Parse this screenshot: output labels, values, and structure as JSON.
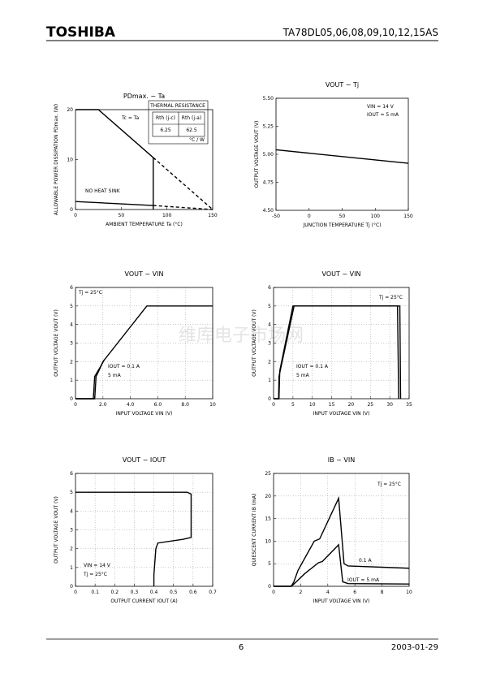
{
  "header": {
    "brand": "TOSHIBA",
    "part": "TA78DL05,06,08,09,10,12,15AS"
  },
  "footer": {
    "page": "6",
    "date": "2003-01-29"
  },
  "watermark": "维库电子市场网",
  "chart_data": [
    {
      "type": "line",
      "title": "PDmax. − Ta",
      "xlabel": "AMBIENT TEMPERATURE Ta (°C)",
      "ylabel": "ALLOWABLE POWER DISSIPATION PDmax. (W)",
      "xlim": [
        0,
        150
      ],
      "xticks": [
        0,
        50,
        100,
        150
      ],
      "ylim": [
        0,
        20
      ],
      "yticks": [
        0,
        10,
        20
      ],
      "grid": false,
      "series": [
        {
          "color": "#000",
          "x": [
            0,
            25,
            85
          ],
          "values": [
            20,
            20,
            10.4
          ]
        },
        {
          "color": "#000",
          "dashed": true,
          "x": [
            85,
            150
          ],
          "values": [
            10.4,
            0
          ]
        },
        {
          "color": "#000",
          "x": [
            85,
            85
          ],
          "values": [
            0,
            10.4
          ]
        },
        {
          "color": "#000",
          "x": [
            0,
            85
          ],
          "values": [
            1.6,
            0.8
          ]
        },
        {
          "color": "#000",
          "dashed": true,
          "x": [
            85,
            150
          ],
          "values": [
            0.8,
            0
          ]
        }
      ],
      "annotations": [
        "Tc = Ta",
        "NO HEAT SINK"
      ],
      "table": {
        "title": "THERMAL RESISTANCE",
        "header": [
          "Rth (j-c)",
          "Rth (j-a)"
        ],
        "row": [
          "6.25",
          "62.5"
        ],
        "unit": "°C / W"
      }
    },
    {
      "type": "line",
      "title": "VOUT − Tj",
      "xlabel": "JUNCTION TEMPERATURE Tj (°C)",
      "ylabel": "OUTPUT VOLTAGE VOUT (V)",
      "xlim": [
        -50,
        150
      ],
      "xticks": [
        -50,
        0,
        50,
        100,
        150
      ],
      "ylim": [
        4.5,
        5.5
      ],
      "yticks": [
        {
          "value": 4.5,
          "label": "4.50"
        },
        4.75,
        {
          "value": 5,
          "label": "5.00"
        },
        5.25,
        {
          "value": 5.5,
          "label": "5.50"
        }
      ],
      "grid": false,
      "series": [
        {
          "color": "#000",
          "x": [
            -50,
            150
          ],
          "values": [
            5.04,
            4.92
          ]
        }
      ],
      "annotations": [
        "VIN = 14 V",
        "IOUT = 5 mA"
      ]
    },
    {
      "type": "line",
      "title": "VOUT − VIN",
      "xlabel": "INPUT VOLTAGE VIN (V)",
      "ylabel": "OUTPUT VOLTAGE VOUT (V)",
      "xlim": [
        0,
        10
      ],
      "xticks": [
        0,
        {
          "value": 2,
          "label": "2.0"
        },
        {
          "value": 4,
          "label": "4.0"
        },
        {
          "value": 6,
          "label": "6.0"
        },
        {
          "value": 8,
          "label": "8.0"
        },
        10
      ],
      "ylim": [
        0,
        6
      ],
      "yticks": [
        0,
        1,
        2,
        3,
        4,
        5,
        6
      ],
      "grid": true,
      "series": [
        {
          "color": "#000",
          "x": [
            0,
            1.4,
            1.5,
            1.7,
            2,
            5.2,
            10
          ],
          "values": [
            0,
            0,
            1.2,
            1.5,
            2,
            5,
            5
          ]
        },
        {
          "color": "#000",
          "x": [
            0,
            1.3,
            1.4,
            1.8,
            2.1
          ],
          "values": [
            0,
            0,
            1.2,
            1.7,
            2.1
          ]
        }
      ],
      "annotations": [
        "Tj = 25°C",
        "IOUT = 0.1 A",
        "5 mA"
      ]
    },
    {
      "type": "line",
      "title": "VOUT − VIN",
      "xlabel": "INPUT VOLTAGE VIN (V)",
      "ylabel": "OUTPUT VOLTAGE VOUT (V)",
      "xlim": [
        0,
        35
      ],
      "xticks": [
        0,
        5,
        10,
        15,
        20,
        25,
        30,
        35
      ],
      "ylim": [
        0,
        6
      ],
      "yticks": [
        0,
        1,
        2,
        3,
        4,
        5,
        6
      ],
      "grid": true,
      "series": [
        {
          "color": "#000",
          "x": [
            0,
            1.4,
            1.6,
            5,
            32,
            32.3
          ],
          "values": [
            0,
            0,
            1.5,
            5,
            5,
            0
          ]
        },
        {
          "color": "#000",
          "x": [
            0,
            1.3,
            1.4,
            5.3,
            32.6,
            32.8
          ],
          "values": [
            0,
            0,
            1.2,
            5,
            5,
            0
          ]
        }
      ],
      "annotations": [
        "Tj = 25°C",
        "IOUT = 0.1 A",
        "5 mA"
      ]
    },
    {
      "type": "line",
      "title": "VOUT − IOUT",
      "xlabel": "OUTPUT CURRENT IOUT (A)",
      "ylabel": "OUTPUT VOLTAGE VOUT (V)",
      "xlim": [
        0,
        0.7
      ],
      "xticks": [
        0,
        0.1,
        0.2,
        0.3,
        0.4,
        0.5,
        0.6,
        0.7
      ],
      "ylim": [
        0,
        6
      ],
      "yticks": [
        0,
        1,
        2,
        3,
        4,
        5,
        6
      ],
      "grid": true,
      "series": [
        {
          "color": "#000",
          "x": [
            0,
            0.57,
            0.59,
            0.59,
            0.55,
            0.42,
            0.41,
            0.4,
            0.4
          ],
          "values": [
            5,
            5,
            4.9,
            2.6,
            2.5,
            2.3,
            2,
            0.6,
            0
          ]
        }
      ],
      "annotations": [
        "VIN = 14 V",
        "Tj = 25°C"
      ]
    },
    {
      "type": "line",
      "title": "IB − VIN",
      "xlabel": "INPUT VOLTAGE VIN (V)",
      "ylabel": "QUIESCENT CURRENT IB (mA)",
      "xlim": [
        0,
        10
      ],
      "xticks": [
        0,
        2,
        4,
        6,
        8,
        10
      ],
      "ylim": [
        0,
        25
      ],
      "yticks": [
        0,
        5,
        10,
        15,
        20,
        25
      ],
      "grid": true,
      "series": [
        {
          "color": "#000",
          "x": [
            0,
            1.3,
            1.5,
            1.8,
            3,
            3.4,
            4.8,
            5.2,
            5.5,
            10
          ],
          "values": [
            0,
            0,
            1,
            3.5,
            10,
            10.5,
            19.5,
            5,
            4.5,
            4
          ]
        },
        {
          "color": "#000",
          "x": [
            0,
            1.3,
            1.5,
            2.3,
            3.3,
            3.6,
            4.8,
            5.1,
            5.5,
            10
          ],
          "values": [
            0,
            0,
            0.5,
            2.8,
            5.2,
            5.5,
            9.2,
            1,
            0.6,
            0.5
          ]
        }
      ],
      "annotations": [
        "Tj = 25°C",
        "0.1 A",
        "IOUT = 5 mA"
      ]
    }
  ]
}
